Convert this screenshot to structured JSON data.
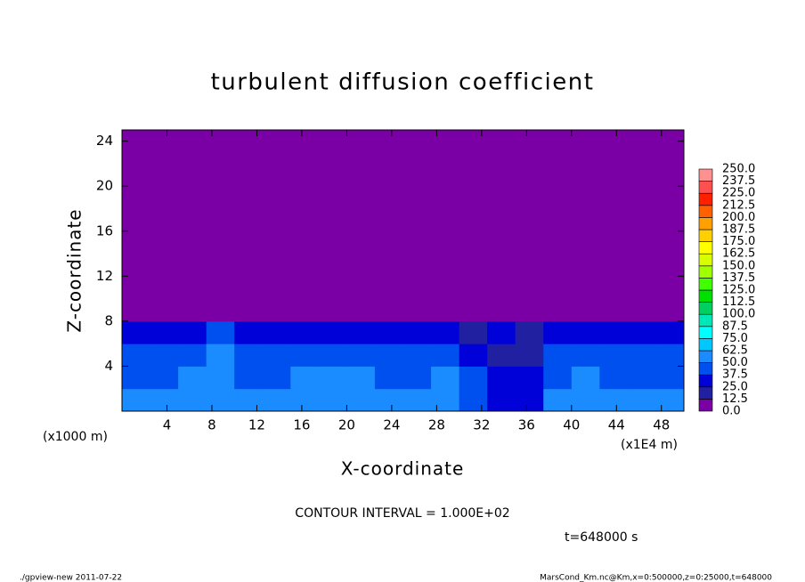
{
  "chart_data": {
    "type": "contour",
    "title": "turbulent diffusion coefficient",
    "x_label": "X-coordinate",
    "y_label": "Z-coordinate",
    "left_unit_note": "(x1000 m)",
    "x_unit_note": "(x1E4 m)",
    "contour_note": "CONTOUR INTERVAL = 1.000E+02",
    "time_note": "t=648000 s",
    "footer_left": "./gpview-new  2011-07-22",
    "footer_right": "MarsCond_Km.nc@Km,x=0:500000,z=0:25000,t=648000",
    "xlim": [
      0,
      50
    ],
    "ylim": [
      0,
      25
    ],
    "xticks": [
      4,
      8,
      12,
      16,
      20,
      24,
      28,
      32,
      36,
      40,
      44,
      48
    ],
    "yticks": [
      4,
      8,
      12,
      16,
      20,
      24
    ],
    "x_edges": [
      0,
      2.5,
      5,
      7.5,
      10,
      12.5,
      15,
      17.5,
      20,
      22.5,
      25,
      27.5,
      30,
      32.5,
      35,
      37.5,
      40,
      42.5,
      45,
      47.5,
      50
    ],
    "z_edges": [
      0,
      2,
      4,
      6,
      8,
      25
    ],
    "z": [
      [
        62,
        60,
        58,
        55,
        57,
        60,
        62,
        58,
        55,
        57,
        60,
        58,
        45,
        30,
        35,
        55,
        58,
        60,
        57,
        55
      ],
      [
        48,
        47,
        50,
        52,
        48,
        45,
        50,
        52,
        50,
        48,
        47,
        50,
        40,
        25,
        28,
        48,
        50,
        47,
        49,
        48
      ],
      [
        40,
        38,
        42,
        55,
        40,
        38,
        42,
        40,
        38,
        40,
        42,
        38,
        30,
        22,
        20,
        38,
        40,
        42,
        40,
        38
      ],
      [
        30,
        28,
        30,
        45,
        30,
        28,
        30,
        32,
        28,
        30,
        30,
        28,
        20,
        25,
        15,
        28,
        30,
        30,
        28,
        30
      ],
      [
        0,
        0,
        0,
        0,
        0,
        0,
        0,
        0,
        0,
        0,
        0,
        0,
        0,
        0,
        0,
        0,
        0,
        0,
        0,
        0
      ]
    ],
    "levels": [
      {
        "value": 0,
        "label": "0.0"
      },
      12.5,
      {
        "value": 25,
        "label": "25.0"
      },
      37.5,
      {
        "value": 50,
        "label": "50.0"
      },
      62.5,
      {
        "value": 75,
        "label": "75.0"
      },
      87.5,
      {
        "value": 100,
        "label": "100.0"
      },
      112.5,
      {
        "value": 125,
        "label": "125.0"
      },
      137.5,
      {
        "value": 150,
        "label": "150.0"
      },
      162.5,
      {
        "value": 175,
        "label": "175.0"
      },
      187.5,
      {
        "value": 200,
        "label": "200.0"
      },
      212.5,
      {
        "value": 225,
        "label": "225.0"
      },
      237.5,
      {
        "value": 250,
        "label": "250.0"
      }
    ],
    "colors": [
      "#7a00a6",
      "#2020a0",
      "#0000d8",
      "#0050f0",
      "#1a8cff",
      "#00c8ff",
      "#00ffff",
      "#00e8b8",
      "#00d060",
      "#00e000",
      "#40ff00",
      "#a0ff00",
      "#d8ff00",
      "#ffff00",
      "#ffd000",
      "#ffa000",
      "#ff6000",
      "#ff2000",
      "#ff5050",
      "#ff9090"
    ]
  }
}
